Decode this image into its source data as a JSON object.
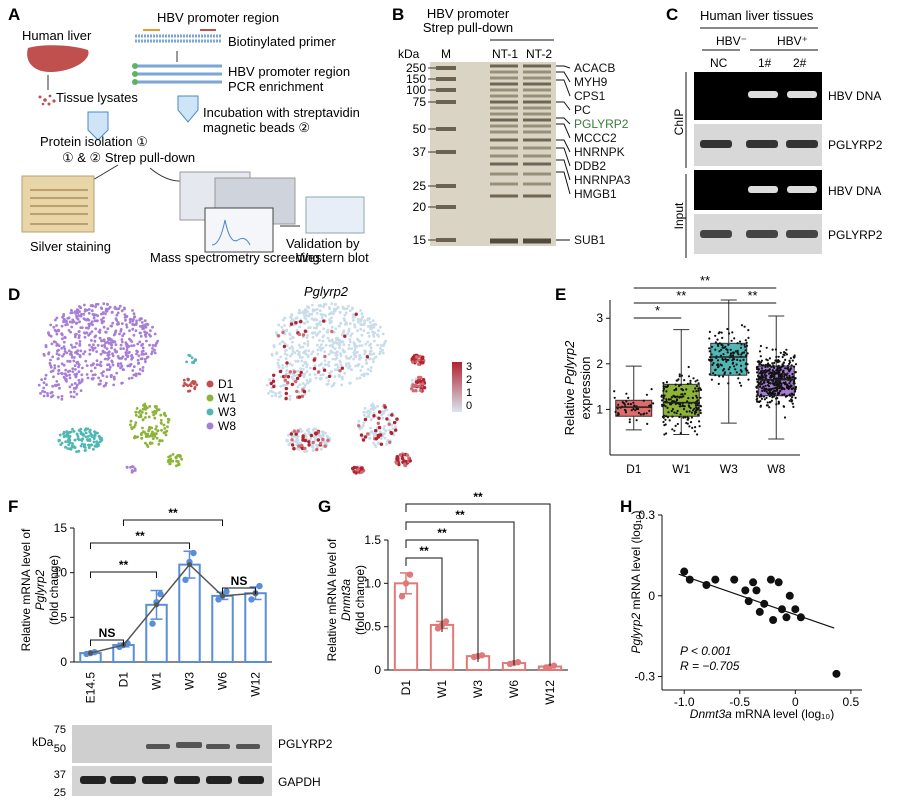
{
  "panel_letters": [
    "A",
    "B",
    "C",
    "D",
    "E",
    "F",
    "G",
    "H"
  ],
  "panelA": {
    "human_liver": "Human liver",
    "hbv_promoter_region": "HBV promoter region",
    "biotinylated_primer": "Biotinylated primer",
    "hbv_promoter_region2": "HBV promoter region",
    "pcr_enrichment": "PCR enrichment",
    "tissue_lysates": "Tissue lysates",
    "incubation": "Incubation with streptavidin",
    "magnetic_beads": "magnetic beads ②",
    "protein_isolation": "Protein isolation ①",
    "strep_pulldown": "① & ② Strep pull-down",
    "silver_staining": "Silver staining",
    "validation1": "Validation by",
    "validation2": "Western blot",
    "mass_spec": "Mass spectrometry screening"
  },
  "panelB": {
    "title1": "HBV promoter",
    "title2": "Strep pull-down",
    "kda": "kDa",
    "lane_m": "M",
    "lane_nt1": "NT-1",
    "lane_nt2": "NT-2",
    "markers": [
      "250",
      "150",
      "100",
      "75",
      "50",
      "37",
      "25",
      "20",
      "15"
    ],
    "proteins": [
      "ACACB",
      "MYH9",
      "CPS1",
      "PC",
      "PGLYRP2",
      "MCCC2",
      "HNRNPK",
      "DDB2",
      "HNRNPA3",
      "HMGB1",
      "SUB1"
    ],
    "highlight_color": "#3a7d3a"
  },
  "panelC": {
    "title": "Human liver tissues",
    "hbv_neg": "HBV⁻",
    "hbv_pos": "HBV⁺",
    "lane_nc": "NC",
    "lane_1": "1#",
    "lane_2": "2#",
    "chip": "ChIP",
    "input": "Input",
    "band_labels": [
      "HBV DNA",
      "PGLYRP2",
      "HBV DNA",
      "PGLYRP2"
    ]
  },
  "panelD": {
    "gene_title": "Pglyrp2",
    "legend": [
      {
        "label": "D1",
        "color": "#c0504d"
      },
      {
        "label": "W1",
        "color": "#8db339"
      },
      {
        "label": "W3",
        "color": "#4fb7b4"
      },
      {
        "label": "W8",
        "color": "#a77ed6"
      }
    ],
    "colorbar_ticks": [
      "3",
      "2",
      "1",
      "0"
    ]
  },
  "panelE": {
    "ylabel_pre": "Relative ",
    "ylabel_gene": "Pglyrp2",
    "ylabel_post": "expression",
    "yticks": [
      "1",
      "2",
      "3"
    ],
    "categories": [
      "D1",
      "W1",
      "W3",
      "W8"
    ],
    "sig": [
      "*",
      "**",
      "**",
      "**"
    ]
  },
  "panelF": {
    "ylabel1": "Relative mRNA level of",
    "ylabel_gene": "Pglyrp2",
    "ylabel_unit": "(fold change)",
    "yticks": [
      "0",
      "5",
      "10",
      "15"
    ],
    "sig": [
      "NS",
      "**",
      "**",
      "**",
      "NS"
    ],
    "blot_labels": [
      "PGLYRP2",
      "GAPDH"
    ],
    "kda": "kDa",
    "kda_ticks": [
      "75",
      "50",
      "37",
      "25"
    ]
  },
  "panelG": {
    "ylabel1": "Relative mRNA level of",
    "ylabel_gene": "Dnmt3a",
    "ylabel_unit": "(fold change)",
    "yticks": [
      "0",
      "0.5",
      "1.0",
      "1.5"
    ],
    "sig": [
      "**",
      "**",
      "**",
      "**"
    ]
  },
  "panelH": {
    "ylabel_gene": "Pglyrp2",
    "ylabel_rest": " mRNA level (log₁₀)",
    "xlabel_gene": "Dnmt3a",
    "xlabel_rest": " mRNA level (log₁₀)",
    "xticks": [
      "-1.0",
      "-0.5",
      "0",
      "0.5"
    ],
    "yticks": [
      "0.3",
      "0",
      "-0.3"
    ],
    "p_text": "P < 0.001",
    "r_text": "R = −0.705"
  },
  "chart_data": [
    {
      "type": "box",
      "panel": "E",
      "categories": [
        "D1",
        "W1",
        "W3",
        "W8"
      ],
      "colors": [
        "#e06b6b",
        "#8db339",
        "#4fb7b4",
        "#a77ed6"
      ],
      "boxes": [
        {
          "min": 0.55,
          "q1": 0.85,
          "median": 1.05,
          "q3": 1.2,
          "max": 1.95
        },
        {
          "min": 0.45,
          "q1": 0.85,
          "median": 1.15,
          "q3": 1.55,
          "max": 2.75
        },
        {
          "min": 0.7,
          "q1": 1.75,
          "median": 2.15,
          "q3": 2.45,
          "max": 3.4
        },
        {
          "min": 0.35,
          "q1": 1.3,
          "median": 1.65,
          "q3": 1.95,
          "max": 3.05
        }
      ],
      "ylim": [
        0,
        3.4
      ]
    },
    {
      "type": "bar",
      "panel": "F",
      "categories": [
        "E14.5",
        "D1",
        "W1",
        "W3",
        "W6",
        "W12"
      ],
      "values": [
        1.0,
        1.9,
        6.4,
        10.9,
        7.4,
        7.7
      ],
      "points": [
        [
          0.9,
          1.0,
          1.1
        ],
        [
          1.7,
          1.9,
          2.1
        ],
        [
          4.3,
          6.7,
          7.6
        ],
        [
          9.2,
          11.2,
          12.2
        ],
        [
          7.0,
          7.4,
          7.9
        ],
        [
          7.0,
          7.7,
          8.5
        ]
      ],
      "errors": [
        0.1,
        0.2,
        1.6,
        1.5,
        0.4,
        0.7
      ],
      "ylim": [
        0,
        15
      ],
      "color": "#5b8ed8"
    },
    {
      "type": "bar",
      "panel": "G",
      "categories": [
        "D1",
        "W1",
        "W3",
        "W6",
        "W12"
      ],
      "values": [
        1.0,
        0.52,
        0.16,
        0.08,
        0.04
      ],
      "points": [
        [
          0.85,
          1.0,
          1.1
        ],
        [
          0.48,
          0.52,
          0.56
        ],
        [
          0.15,
          0.16,
          0.17
        ],
        [
          0.07,
          0.08,
          0.09
        ],
        [
          0.03,
          0.04,
          0.05
        ]
      ],
      "errors": [
        0.12,
        0.04,
        0.01,
        0.01,
        0.01
      ],
      "ylim": [
        0,
        1.5
      ],
      "color": "#e07a7a"
    },
    {
      "type": "scatter",
      "panel": "H",
      "points": [
        [
          -1.0,
          0.09
        ],
        [
          -0.95,
          0.06
        ],
        [
          -0.8,
          0.04
        ],
        [
          -0.72,
          0.06
        ],
        [
          -0.55,
          0.06
        ],
        [
          -0.45,
          0.02
        ],
        [
          -0.42,
          -0.02
        ],
        [
          -0.38,
          0.05
        ],
        [
          -0.35,
          0.02
        ],
        [
          -0.32,
          -0.06
        ],
        [
          -0.28,
          -0.03
        ],
        [
          -0.22,
          0.06
        ],
        [
          -0.2,
          -0.09
        ],
        [
          -0.15,
          0.05
        ],
        [
          -0.12,
          -0.05
        ],
        [
          -0.08,
          -0.08
        ],
        [
          -0.05,
          0.0
        ],
        [
          0.0,
          -0.05
        ],
        [
          0.05,
          -0.08
        ],
        [
          0.37,
          -0.29
        ]
      ],
      "fit": [
        [
          -1.05,
          0.08
        ],
        [
          0.35,
          -0.12
        ]
      ],
      "xlim": [
        -1.2,
        0.6
      ],
      "ylim": [
        -0.35,
        0.3
      ]
    }
  ]
}
